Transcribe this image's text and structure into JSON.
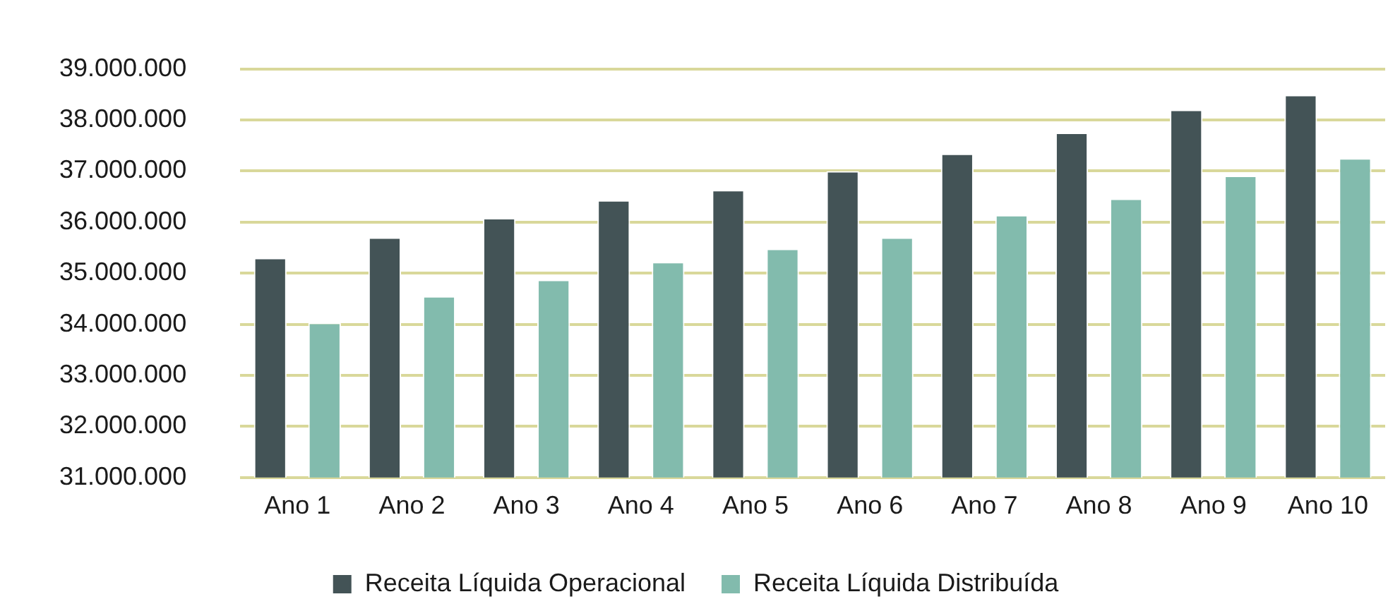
{
  "chart_data": {
    "type": "bar",
    "categories": [
      "Ano 1",
      "Ano 2",
      "Ano 3",
      "Ano 4",
      "Ano 5",
      "Ano 6",
      "Ano 7",
      "Ano 8",
      "Ano 9",
      "Ano 10"
    ],
    "series": [
      {
        "name": "Receita Líquida Operacional",
        "color": "#435356",
        "values": [
          35300000,
          35700000,
          36080000,
          36430000,
          36630000,
          37000000,
          37340000,
          37750000,
          38200000,
          38490000
        ]
      },
      {
        "name": "Receita Líquida Distribuída",
        "color": "#82bbad",
        "values": [
          34030000,
          34550000,
          34870000,
          35220000,
          35480000,
          35700000,
          36140000,
          36460000,
          36910000,
          37250000
        ]
      }
    ],
    "ylim": [
      31000000,
      39000000
    ],
    "yticks": [
      {
        "value": 31000000,
        "label": "31.000.000"
      },
      {
        "value": 32000000,
        "label": "32.000.000"
      },
      {
        "value": 33000000,
        "label": "33.000.000"
      },
      {
        "value": 34000000,
        "label": "34.000.000"
      },
      {
        "value": 35000000,
        "label": "35.000.000"
      },
      {
        "value": 36000000,
        "label": "36.000.000"
      },
      {
        "value": 37000000,
        "label": "37.000.000"
      },
      {
        "value": 38000000,
        "label": "38.000.000"
      },
      {
        "value": 39000000,
        "label": "39.000.000"
      }
    ],
    "grid": "y",
    "legend": "bottom"
  }
}
